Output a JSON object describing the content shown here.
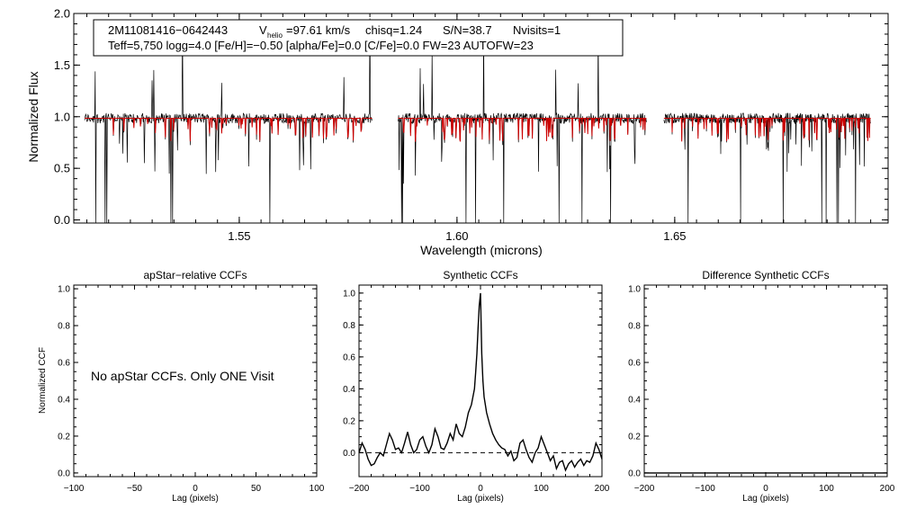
{
  "chart_data": [
    {
      "type": "line",
      "id": "spectrum",
      "xlabel": "Wavelength (microns)",
      "ylabel": "Normalized Flux",
      "xlim": [
        1.512,
        1.699
      ],
      "ylim": [
        -0.03,
        2.0
      ],
      "xticks": [
        1.55,
        1.6,
        1.65
      ],
      "xtick_labels": [
        "1.55",
        "1.60",
        "1.65"
      ],
      "yticks": [
        0.0,
        0.5,
        1.0,
        1.5,
        2.0
      ],
      "ytick_labels": [
        "0.0",
        "0.5",
        "1.0",
        "1.5",
        "2.0"
      ],
      "chips": [
        [
          1.5145,
          1.5805
        ],
        [
          1.5865,
          1.6435
        ],
        [
          1.6475,
          1.695
        ]
      ],
      "series": [
        {
          "name": "observed",
          "color": "#000000"
        },
        {
          "name": "model",
          "color": "#cc0000"
        }
      ],
      "info": {
        "star_id": "2M11081416−0642443",
        "v_symbol": "V",
        "v_subscript": "helio",
        "v_value": "=97.61 km/s",
        "chisq": "chisq=1.24",
        "snr": "S/N=38.7",
        "nvisits": "Nvisits=1",
        "params": "Teff=5,750 logg=4.0 [Fe/H]=−0.50 [alpha/Fe]=0.0 [C/Fe]=0.0 FW=23 AUTOFW=23"
      }
    },
    {
      "type": "line",
      "id": "apstar-ccf",
      "title": "apStar−relative CCFs",
      "xlabel": "Lag (pixels)",
      "ylabel": "Normalized CCF",
      "xlim": [
        -100,
        100
      ],
      "ylim": [
        -0.02,
        1.02
      ],
      "xticks": [
        -100,
        -50,
        0,
        50,
        100
      ],
      "xtick_labels": [
        "−100",
        "−50",
        "0",
        "50",
        "100"
      ],
      "yticks": [
        0.0,
        0.2,
        0.4,
        0.6,
        0.8,
        1.0
      ],
      "ytick_labels": [
        "0.0",
        "0.2",
        "0.4",
        "0.6",
        "0.8",
        "1.0"
      ],
      "message": "No apStar CCFs.  Only ONE Visit",
      "series": []
    },
    {
      "type": "line",
      "id": "synthetic-ccf",
      "title": "Synthetic CCFs",
      "xlabel": "Lag (pixels)",
      "xlim": [
        -200,
        200
      ],
      "ylim": [
        -0.15,
        1.05
      ],
      "xticks": [
        -200,
        -100,
        0,
        100,
        200
      ],
      "xtick_labels": [
        "−200",
        "−100",
        "0",
        "100",
        "200"
      ],
      "yticks": [
        0.0,
        0.2,
        0.4,
        0.6,
        0.8,
        1.0
      ],
      "ytick_labels": [
        "0.0",
        "0.2",
        "0.4",
        "0.6",
        "0.8",
        "1.0"
      ],
      "zero_line": 0.0,
      "series": [
        {
          "name": "ccf",
          "x": [
            -200,
            -195,
            -190,
            -185,
            -180,
            -175,
            -170,
            -165,
            -160,
            -155,
            -150,
            -145,
            -140,
            -135,
            -130,
            -125,
            -120,
            -115,
            -110,
            -105,
            -100,
            -95,
            -90,
            -85,
            -80,
            -75,
            -70,
            -65,
            -60,
            -55,
            -50,
            -45,
            -40,
            -35,
            -30,
            -25,
            -20,
            -15,
            -10,
            -8,
            -6,
            -4,
            -2,
            0,
            2,
            4,
            6,
            8,
            10,
            15,
            20,
            25,
            30,
            35,
            40,
            45,
            50,
            55,
            60,
            65,
            70,
            75,
            80,
            85,
            90,
            95,
            100,
            105,
            110,
            115,
            120,
            125,
            130,
            135,
            140,
            145,
            150,
            155,
            160,
            165,
            170,
            175,
            180,
            185,
            190,
            195,
            200
          ],
          "y": [
            0.0,
            0.06,
            0.02,
            -0.04,
            -0.08,
            -0.07,
            -0.03,
            0.0,
            -0.02,
            0.05,
            0.12,
            0.08,
            0.02,
            0.03,
            0.0,
            0.06,
            0.13,
            0.05,
            0.0,
            0.02,
            0.08,
            0.1,
            0.04,
            0.0,
            0.05,
            0.15,
            0.1,
            0.03,
            0.02,
            0.06,
            0.12,
            0.08,
            0.18,
            0.12,
            0.1,
            0.16,
            0.25,
            0.3,
            0.4,
            0.5,
            0.62,
            0.78,
            0.92,
            1.0,
            0.62,
            0.45,
            0.35,
            0.3,
            0.25,
            0.18,
            0.12,
            0.08,
            0.05,
            0.03,
            0.02,
            -0.02,
            0.01,
            -0.05,
            -0.03,
            0.06,
            0.08,
            0.02,
            -0.03,
            -0.06,
            0.0,
            0.03,
            0.1,
            0.05,
            0.0,
            -0.05,
            -0.02,
            -0.1,
            -0.06,
            -0.05,
            -0.11,
            -0.07,
            -0.05,
            -0.09,
            -0.06,
            -0.04,
            -0.08,
            -0.05,
            -0.06,
            -0.02,
            0.06,
            0.02,
            -0.04
          ]
        }
      ]
    },
    {
      "type": "line",
      "id": "difference-ccf",
      "title": "Difference Synthetic CCFs",
      "xlabel": "Lag (pixels)",
      "xlim": [
        -200,
        200
      ],
      "ylim": [
        -0.02,
        1.02
      ],
      "xticks": [
        -200,
        -100,
        0,
        100,
        200
      ],
      "xtick_labels": [
        "−200",
        "−100",
        "0",
        "100",
        "200"
      ],
      "yticks": [
        0.0,
        0.2,
        0.4,
        0.6,
        0.8,
        1.0
      ],
      "ytick_labels": [
        "0.0",
        "0.2",
        "0.4",
        "0.6",
        "0.8",
        "1.0"
      ],
      "series": [
        {
          "name": "difference",
          "x": [
            -200,
            200
          ],
          "y": [
            0.0,
            0.0
          ]
        }
      ]
    }
  ]
}
